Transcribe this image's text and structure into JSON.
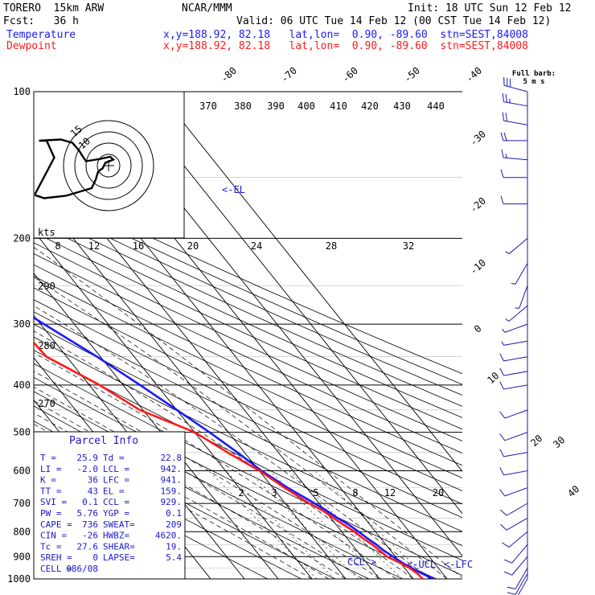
{
  "header": {
    "model": "TORERO  15km ARW",
    "org": "NCAR/MMM",
    "init": "Init: 18 UTC Sun 12 Feb 12",
    "fcst": "Fcst:   36 h",
    "valid": "Valid: 06 UTC Tue 14 Feb 12 (00 CST Tue 14 Feb 12)",
    "temperature_label": "Temperature",
    "dewpoint_label": "Dewpoint",
    "temp_loc": "x,y=188.92, 82.18   lat,lon=  0.90, -89.60  stn=SEST,84008",
    "dew_loc": "x,y=188.92, 82.18   lat,lon=  0.90, -89.60  stn=SEST,84008"
  },
  "barb_legend": {
    "line1": "Full barb:",
    "line2": "5 m s"
  },
  "hodograph": {
    "units": "kts",
    "speed_labels": [
      "8",
      "12",
      "16",
      "20",
      "24",
      "28",
      "32"
    ],
    "ring_labels": [
      "15",
      "10"
    ],
    "track": [
      [
        -17.3,
        6.2
      ],
      [
        -11.9,
        6.5
      ],
      [
        -9.0,
        5.7
      ],
      [
        -7.3,
        3.7
      ],
      [
        -6.5,
        2.4
      ],
      [
        -5.6,
        1.1
      ],
      [
        -2.5,
        1.6
      ],
      [
        0.4,
        2.2
      ],
      [
        1.2,
        1.5
      ],
      [
        -0.8,
        0.7
      ],
      [
        -1.5,
        -0.7
      ],
      [
        -2.1,
        -1.1
      ],
      [
        -2.6,
        -1.5
      ],
      [
        -3.2,
        -3.5
      ],
      [
        -4.2,
        -5.6
      ],
      [
        -10.6,
        -7.5
      ],
      [
        -16.0,
        -8.1
      ],
      [
        -18.4,
        -7.3
      ],
      [
        -13.5,
        2.0
      ],
      [
        -15.4,
        6.2
      ],
      [
        -17.3,
        6.2
      ]
    ],
    "colors": {
      "rings": "#000000",
      "track": "#000000"
    }
  },
  "parcel_info": {
    "title": "Parcel Info",
    "rows": [
      [
        "T    =",
        "25.9",
        "Td  =",
        "22.8"
      ],
      [
        "LI   =",
        "-2.0",
        "LCL =",
        "942."
      ],
      [
        "K    =",
        "36",
        "LFC =",
        "941."
      ],
      [
        "TT   =",
        "43",
        "EL  =",
        "159."
      ],
      [
        "SVI  =",
        "0.1",
        "CCL =",
        "929."
      ],
      [
        "PW   =",
        "5.76",
        "YGP =",
        "0.1"
      ],
      [
        "CAPE =",
        "736",
        "SWEAT=",
        "209"
      ],
      [
        "CIN  =",
        "-26",
        "HWBZ=",
        "4620."
      ],
      [
        "Tc   =",
        "27.6",
        "SHEAR=",
        "19."
      ],
      [
        "SREH =",
        "0",
        "LAPSE=",
        "5.4"
      ],
      [
        "CELL =",
        "086/08",
        "",
        ""
      ]
    ]
  },
  "annotations": {
    "el": "<-EL",
    "ccl": "CCL->",
    "ucl": "<-UCL",
    "lfc": "<-LFC"
  },
  "chart_data": {
    "type": "line",
    "title": "",
    "xlabel": "",
    "ylabel": "",
    "pressure_levels": [
      "100",
      "200",
      "300",
      "400",
      "500",
      "600",
      "700",
      "800",
      "900",
      "1000"
    ],
    "isotherm_labels": [
      "-80",
      "-70",
      "-60",
      "-50",
      "-40",
      "-30",
      "-20",
      "-10",
      "0",
      "10",
      "20",
      "30",
      "40"
    ],
    "theta_labels": [
      "370",
      "380",
      "390",
      "400",
      "410",
      "420",
      "430",
      "440"
    ],
    "side_theta_labels": [
      "290",
      "280",
      "270"
    ],
    "mixing_ratio_labels": [
      "2",
      "3",
      "5",
      "8",
      "12",
      "20"
    ],
    "series": [
      {
        "name": "Temperature",
        "color": "#1a1aff",
        "points": [
          [
            1000,
            25.9
          ],
          [
            975,
            23.9
          ],
          [
            950,
            22.0
          ],
          [
            925,
            20.5
          ],
          [
            900,
            19.3
          ],
          [
            875,
            18.0
          ],
          [
            850,
            17.2
          ],
          [
            825,
            16.0
          ],
          [
            800,
            15.0
          ],
          [
            775,
            13.8
          ],
          [
            750,
            12.0
          ],
          [
            725,
            10.6
          ],
          [
            700,
            8.7
          ],
          [
            650,
            4.4
          ],
          [
            600,
            0.7
          ],
          [
            550,
            -2.1
          ],
          [
            500,
            -5.6
          ],
          [
            450,
            -10.0
          ],
          [
            400,
            -15.0
          ],
          [
            350,
            -21.0
          ],
          [
            300,
            -29.0
          ],
          [
            250,
            -38.0
          ],
          [
            200,
            -49.0
          ],
          [
            175,
            -56.0
          ],
          [
            150,
            -62.5
          ],
          [
            140,
            -66.0
          ],
          [
            130,
            -68.5
          ],
          [
            120,
            -69.5
          ],
          [
            110,
            -70.0
          ],
          [
            100,
            -68.5
          ]
        ]
      },
      {
        "name": "Dewpoint",
        "color": "#ff1a1a",
        "points": [
          [
            1000,
            22.8
          ],
          [
            975,
            22.5
          ],
          [
            950,
            21.5
          ],
          [
            925,
            19.7
          ],
          [
            900,
            17.5
          ],
          [
            875,
            16.8
          ],
          [
            850,
            16.0
          ],
          [
            825,
            14.7
          ],
          [
            800,
            13.8
          ],
          [
            775,
            12.2
          ],
          [
            750,
            10.8
          ],
          [
            725,
            9.5
          ],
          [
            700,
            7.1
          ],
          [
            650,
            3.5
          ],
          [
            600,
            0.1
          ],
          [
            550,
            -5.0
          ],
          [
            500,
            -10.0
          ],
          [
            450,
            -21.0
          ],
          [
            400,
            -27.0
          ],
          [
            350,
            -36.0
          ],
          [
            300,
            -37.0
          ],
          [
            250,
            -54.0
          ],
          [
            225,
            -64.0
          ],
          [
            200,
            -66.0
          ],
          [
            175,
            -68.0
          ],
          [
            150,
            -72.0
          ],
          [
            140,
            -75.0
          ],
          [
            125,
            -79.0
          ],
          [
            110,
            -80.0
          ],
          [
            100,
            -79.0
          ]
        ]
      }
    ],
    "wind_barbs": [
      {
        "p": 100,
        "dir": 285,
        "kts": 30
      },
      {
        "p": 107,
        "dir": 280,
        "kts": 25
      },
      {
        "p": 117,
        "dir": 280,
        "kts": 20
      },
      {
        "p": 126,
        "dir": 270,
        "kts": 20
      },
      {
        "p": 138,
        "dir": 275,
        "kts": 15
      },
      {
        "p": 150,
        "dir": 270,
        "kts": 10
      },
      {
        "p": 170,
        "dir": 270,
        "kts": 10
      },
      {
        "p": 200,
        "dir": 230,
        "kts": 5
      },
      {
        "p": 225,
        "dir": 210,
        "kts": 5
      },
      {
        "p": 250,
        "dir": 200,
        "kts": 5
      },
      {
        "p": 275,
        "dir": 230,
        "kts": 5
      },
      {
        "p": 300,
        "dir": 250,
        "kts": 5
      },
      {
        "p": 325,
        "dir": 260,
        "kts": 5
      },
      {
        "p": 350,
        "dir": 260,
        "kts": 10
      },
      {
        "p": 375,
        "dir": 260,
        "kts": 10
      },
      {
        "p": 400,
        "dir": 260,
        "kts": 10
      },
      {
        "p": 450,
        "dir": 250,
        "kts": 10
      },
      {
        "p": 500,
        "dir": 250,
        "kts": 10
      },
      {
        "p": 550,
        "dir": 260,
        "kts": 10
      },
      {
        "p": 600,
        "dir": 260,
        "kts": 10
      },
      {
        "p": 650,
        "dir": 250,
        "kts": 10
      },
      {
        "p": 700,
        "dir": 240,
        "kts": 10
      },
      {
        "p": 750,
        "dir": 240,
        "kts": 10
      },
      {
        "p": 800,
        "dir": 230,
        "kts": 10
      },
      {
        "p": 850,
        "dir": 220,
        "kts": 10
      },
      {
        "p": 900,
        "dir": 220,
        "kts": 10
      },
      {
        "p": 950,
        "dir": 210,
        "kts": 10
      },
      {
        "p": 975,
        "dir": 210,
        "kts": 10
      },
      {
        "p": 1000,
        "dir": 210,
        "kts": 10
      }
    ],
    "legend": "top-left"
  }
}
